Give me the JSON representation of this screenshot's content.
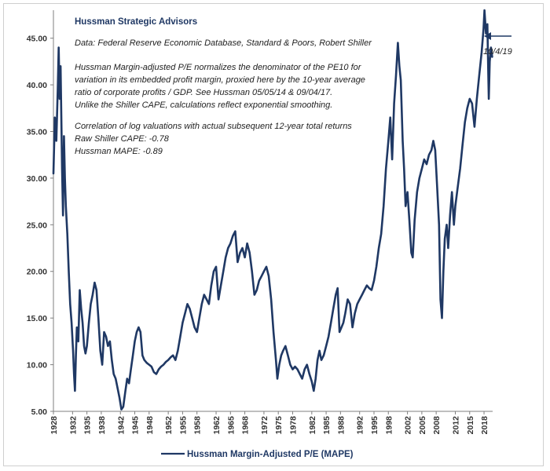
{
  "chart_data": {
    "type": "line",
    "title": "Hussman Strategic Advisors",
    "annotations": [
      "Data: Federal Reserve Economic Database, Standard & Poors, Robert Shiller",
      "Hussman Margin-adjusted P/E normalizes the denominator of the PE10 for",
      "variation in its embedded profit margin, proxied here by the 10-year average",
      "ratio of corporate profits / GDP. See Hussman 05/05/14  & 09/04/17.",
      "Unlike the Shiller CAPE, calculations reflect exponential smoothing.",
      "Correlation of log valuations with actual subsequent 12-year total returns",
      "Raw Shiller CAPE: -0.78",
      "Hussman MAPE: -0.89"
    ],
    "end_label": "10/4/19",
    "ylim": [
      5,
      48
    ],
    "xlim": [
      1928,
      2019.8
    ],
    "y_ticks": [
      "5.00",
      "10.00",
      "15.00",
      "20.00",
      "25.00",
      "30.00",
      "35.00",
      "40.00",
      "45.00"
    ],
    "x_ticks": [
      "1928",
      "1932",
      "1935",
      "1938",
      "1942",
      "1945",
      "1948",
      "1952",
      "1955",
      "1958",
      "1962",
      "1965",
      "1968",
      "1972",
      "1975",
      "1978",
      "1982",
      "1985",
      "1988",
      "1992",
      "1995",
      "1998",
      "2002",
      "2005",
      "2008",
      "2012",
      "2015",
      "2018"
    ],
    "grid": false,
    "legend_position": "bottom",
    "colors": {
      "line": "#1f3864",
      "title": "#1f3864",
      "arrow": "#1f3864"
    },
    "series": [
      {
        "name": "Hussman Margin-Adjusted P/E (MAPE)",
        "points": [
          [
            1928.0,
            30.5
          ],
          [
            1928.3,
            36.5
          ],
          [
            1928.6,
            34.0
          ],
          [
            1928.9,
            39.5
          ],
          [
            1929.1,
            44.0
          ],
          [
            1929.3,
            38.5
          ],
          [
            1929.5,
            42.0
          ],
          [
            1929.8,
            31.0
          ],
          [
            1930.0,
            26.0
          ],
          [
            1930.2,
            34.5
          ],
          [
            1930.4,
            30.0
          ],
          [
            1930.6,
            27.0
          ],
          [
            1930.9,
            24.0
          ],
          [
            1931.2,
            20.0
          ],
          [
            1931.5,
            16.5
          ],
          [
            1931.8,
            14.5
          ],
          [
            1932.1,
            11.5
          ],
          [
            1932.3,
            9.0
          ],
          [
            1932.5,
            7.2
          ],
          [
            1932.7,
            11.0
          ],
          [
            1932.9,
            14.0
          ],
          [
            1933.2,
            12.5
          ],
          [
            1933.5,
            18.0
          ],
          [
            1933.8,
            16.0
          ],
          [
            1934.1,
            14.5
          ],
          [
            1934.4,
            12.0
          ],
          [
            1934.7,
            11.2
          ],
          [
            1935.0,
            12.0
          ],
          [
            1935.4,
            14.5
          ],
          [
            1935.8,
            16.5
          ],
          [
            1936.2,
            17.5
          ],
          [
            1936.6,
            18.8
          ],
          [
            1937.0,
            18.0
          ],
          [
            1937.4,
            15.0
          ],
          [
            1937.8,
            11.5
          ],
          [
            1938.2,
            10.0
          ],
          [
            1938.6,
            13.5
          ],
          [
            1939.0,
            13.0
          ],
          [
            1939.4,
            12.0
          ],
          [
            1939.8,
            12.5
          ],
          [
            1940.2,
            10.5
          ],
          [
            1940.6,
            9.0
          ],
          [
            1941.0,
            8.5
          ],
          [
            1941.4,
            7.5
          ],
          [
            1941.8,
            6.5
          ],
          [
            1942.2,
            5.2
          ],
          [
            1942.6,
            5.5
          ],
          [
            1943.0,
            7.0
          ],
          [
            1943.4,
            8.5
          ],
          [
            1943.8,
            8.0
          ],
          [
            1944.2,
            9.5
          ],
          [
            1944.6,
            11.0
          ],
          [
            1945.0,
            12.5
          ],
          [
            1945.4,
            13.5
          ],
          [
            1945.8,
            14.0
          ],
          [
            1946.2,
            13.5
          ],
          [
            1946.6,
            11.0
          ],
          [
            1947.0,
            10.5
          ],
          [
            1947.5,
            10.2
          ],
          [
            1948.0,
            10.0
          ],
          [
            1948.5,
            9.8
          ],
          [
            1949.0,
            9.2
          ],
          [
            1949.5,
            9.0
          ],
          [
            1950.0,
            9.5
          ],
          [
            1950.5,
            9.8
          ],
          [
            1951.0,
            10.0
          ],
          [
            1951.5,
            10.3
          ],
          [
            1952.0,
            10.5
          ],
          [
            1952.5,
            10.8
          ],
          [
            1953.0,
            11.0
          ],
          [
            1953.5,
            10.5
          ],
          [
            1954.0,
            11.5
          ],
          [
            1954.5,
            13.0
          ],
          [
            1955.0,
            14.5
          ],
          [
            1955.5,
            15.5
          ],
          [
            1956.0,
            16.5
          ],
          [
            1956.5,
            16.0
          ],
          [
            1957.0,
            15.0
          ],
          [
            1957.5,
            14.0
          ],
          [
            1958.0,
            13.5
          ],
          [
            1958.5,
            15.0
          ],
          [
            1959.0,
            16.5
          ],
          [
            1959.5,
            17.5
          ],
          [
            1960.0,
            17.0
          ],
          [
            1960.5,
            16.5
          ],
          [
            1961.0,
            18.5
          ],
          [
            1961.5,
            20.0
          ],
          [
            1962.0,
            20.5
          ],
          [
            1962.5,
            17.0
          ],
          [
            1963.0,
            18.5
          ],
          [
            1963.5,
            20.0
          ],
          [
            1964.0,
            21.5
          ],
          [
            1964.5,
            22.5
          ],
          [
            1965.0,
            23.0
          ],
          [
            1965.5,
            23.8
          ],
          [
            1966.0,
            24.3
          ],
          [
            1966.5,
            21.0
          ],
          [
            1967.0,
            22.0
          ],
          [
            1967.5,
            22.5
          ],
          [
            1968.0,
            21.5
          ],
          [
            1968.5,
            23.0
          ],
          [
            1969.0,
            22.0
          ],
          [
            1969.5,
            20.0
          ],
          [
            1970.0,
            17.5
          ],
          [
            1970.5,
            18.0
          ],
          [
            1971.0,
            19.0
          ],
          [
            1971.5,
            19.5
          ],
          [
            1972.0,
            20.0
          ],
          [
            1972.5,
            20.5
          ],
          [
            1973.0,
            19.5
          ],
          [
            1973.5,
            17.0
          ],
          [
            1974.0,
            13.5
          ],
          [
            1974.5,
            10.5
          ],
          [
            1974.8,
            8.5
          ],
          [
            1975.2,
            10.0
          ],
          [
            1975.6,
            11.0
          ],
          [
            1976.0,
            11.5
          ],
          [
            1976.5,
            12.0
          ],
          [
            1977.0,
            11.0
          ],
          [
            1977.5,
            10.0
          ],
          [
            1978.0,
            9.5
          ],
          [
            1978.5,
            9.8
          ],
          [
            1979.0,
            9.5
          ],
          [
            1979.5,
            9.0
          ],
          [
            1980.0,
            8.5
          ],
          [
            1980.5,
            9.5
          ],
          [
            1981.0,
            10.0
          ],
          [
            1981.5,
            9.0
          ],
          [
            1982.0,
            8.2
          ],
          [
            1982.4,
            7.2
          ],
          [
            1982.8,
            8.5
          ],
          [
            1983.2,
            10.5
          ],
          [
            1983.6,
            11.5
          ],
          [
            1984.0,
            10.5
          ],
          [
            1984.5,
            11.0
          ],
          [
            1985.0,
            12.0
          ],
          [
            1985.5,
            13.0
          ],
          [
            1986.0,
            14.5
          ],
          [
            1986.5,
            16.0
          ],
          [
            1987.0,
            17.5
          ],
          [
            1987.4,
            18.2
          ],
          [
            1987.8,
            13.5
          ],
          [
            1988.2,
            14.0
          ],
          [
            1988.6,
            14.5
          ],
          [
            1989.0,
            15.5
          ],
          [
            1989.5,
            17.0
          ],
          [
            1990.0,
            16.5
          ],
          [
            1990.5,
            14.0
          ],
          [
            1991.0,
            15.5
          ],
          [
            1991.5,
            16.5
          ],
          [
            1992.0,
            17.0
          ],
          [
            1992.5,
            17.5
          ],
          [
            1993.0,
            18.0
          ],
          [
            1993.5,
            18.5
          ],
          [
            1994.0,
            18.2
          ],
          [
            1994.5,
            18.0
          ],
          [
            1995.0,
            19.0
          ],
          [
            1995.5,
            20.5
          ],
          [
            1996.0,
            22.5
          ],
          [
            1996.5,
            24.0
          ],
          [
            1997.0,
            27.0
          ],
          [
            1997.5,
            31.0
          ],
          [
            1998.0,
            34.0
          ],
          [
            1998.4,
            36.5
          ],
          [
            1998.8,
            32.0
          ],
          [
            1999.2,
            38.0
          ],
          [
            1999.6,
            41.0
          ],
          [
            2000.0,
            44.5
          ],
          [
            2000.3,
            42.0
          ],
          [
            2000.6,
            40.5
          ],
          [
            2001.0,
            34.0
          ],
          [
            2001.3,
            31.0
          ],
          [
            2001.6,
            27.0
          ],
          [
            2002.0,
            28.5
          ],
          [
            2002.4,
            25.5
          ],
          [
            2002.8,
            22.0
          ],
          [
            2003.1,
            21.5
          ],
          [
            2003.5,
            25.5
          ],
          [
            2004.0,
            28.5
          ],
          [
            2004.5,
            30.0
          ],
          [
            2005.0,
            31.0
          ],
          [
            2005.5,
            32.0
          ],
          [
            2006.0,
            31.5
          ],
          [
            2006.5,
            32.5
          ],
          [
            2007.0,
            33.0
          ],
          [
            2007.4,
            34.0
          ],
          [
            2007.8,
            33.0
          ],
          [
            2008.2,
            29.0
          ],
          [
            2008.6,
            25.0
          ],
          [
            2008.9,
            17.0
          ],
          [
            2009.2,
            15.0
          ],
          [
            2009.5,
            20.0
          ],
          [
            2009.8,
            23.5
          ],
          [
            2010.2,
            25.0
          ],
          [
            2010.5,
            22.5
          ],
          [
            2010.9,
            26.0
          ],
          [
            2011.3,
            28.5
          ],
          [
            2011.7,
            25.0
          ],
          [
            2012.0,
            27.0
          ],
          [
            2012.5,
            29.0
          ],
          [
            2013.0,
            31.0
          ],
          [
            2013.5,
            33.5
          ],
          [
            2014.0,
            36.0
          ],
          [
            2014.5,
            37.5
          ],
          [
            2015.0,
            38.5
          ],
          [
            2015.5,
            38.0
          ],
          [
            2016.0,
            35.5
          ],
          [
            2016.5,
            38.5
          ],
          [
            2017.0,
            41.0
          ],
          [
            2017.5,
            43.5
          ],
          [
            2017.9,
            46.0
          ],
          [
            2018.1,
            48.0
          ],
          [
            2018.4,
            45.5
          ],
          [
            2018.7,
            46.5
          ],
          [
            2018.9,
            41.0
          ],
          [
            2019.0,
            38.5
          ],
          [
            2019.2,
            42.5
          ],
          [
            2019.45,
            44.0
          ],
          [
            2019.7,
            43.0
          ]
        ]
      }
    ]
  }
}
